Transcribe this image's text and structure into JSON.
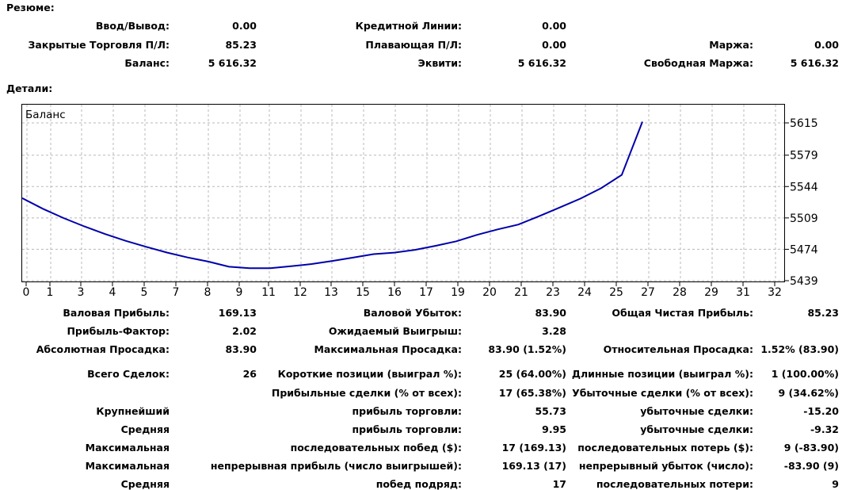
{
  "summary": {
    "title": "Резюме:",
    "rows": [
      [
        {
          "label": "Ввод/Вывод:",
          "value": "0.00"
        },
        {
          "label": "Кредитной Линии:",
          "value": "0.00"
        },
        {
          "label": "",
          "value": ""
        }
      ],
      [
        {
          "label": "Закрытые Торговля П/Л:",
          "value": "85.23"
        },
        {
          "label": "Плавающая П/Л:",
          "value": "0.00"
        },
        {
          "label": "Маржа:",
          "value": "0.00"
        }
      ],
      [
        {
          "label": "Баланс:",
          "value": "5 616.32"
        },
        {
          "label": "Эквити:",
          "value": "5 616.32"
        },
        {
          "label": "Свободная Маржа:",
          "value": "5 616.32"
        }
      ]
    ]
  },
  "details": {
    "title": "Детали:"
  },
  "chart_data": {
    "type": "line",
    "title": "Баланс",
    "x_ticks": [
      "0",
      "1",
      "3",
      "4",
      "5",
      "7",
      "8",
      "9",
      "11",
      "12",
      "13",
      "15",
      "16",
      "17",
      "19",
      "20",
      "21",
      "23",
      "24",
      "25",
      "27",
      "28",
      "29",
      "31",
      "32"
    ],
    "y_ticks": [
      "5615",
      "5579",
      "5544",
      "5509",
      "5474",
      "5439"
    ],
    "ylim": [
      5439,
      5615
    ],
    "series": [
      {
        "values": [
          5531.09,
          5519.23,
          5508.9,
          5499.6,
          5491.1,
          5483.5,
          5476.8,
          5470.4,
          5464.9,
          5460.3,
          5454.6,
          5453.0,
          5453.0,
          5455.1,
          5457.6,
          5461.0,
          5464.7,
          5468.6,
          5470.3,
          5473.4,
          5477.9,
          5483.0,
          5490.1,
          5496.2,
          5501.6,
          5510.9,
          5520.6,
          5530.5,
          5542.1,
          5557.0,
          5616.32
        ],
        "color": "#0000ab"
      }
    ],
    "grid": true
  },
  "stats": {
    "rows": [
      [
        {
          "label": "Валовая Прибыль:",
          "value": "169.13"
        },
        {
          "label": "Валовой Убыток:",
          "value": "83.90"
        },
        {
          "label": "Общая Чистая Прибыль:",
          "value": "85.23"
        }
      ],
      [
        {
          "label": "Прибыль-Фактор:",
          "value": "2.02"
        },
        {
          "label": "Ожидаемый Выигрыш:",
          "value": "3.28"
        },
        {
          "label": "",
          "value": ""
        }
      ],
      [
        {
          "label": "Абсолютная Просадка:",
          "value": "83.90"
        },
        {
          "label": "Максимальная Просадка:",
          "value": "83.90 (1.52%)"
        },
        {
          "label": "Относительная Просадка:",
          "value": "1.52% (83.90)"
        }
      ],
      [
        {
          "label": "Всего Сделок:",
          "value": "26"
        },
        {
          "label": "Короткие позиции (выиграл %):",
          "value": "25 (64.00%)"
        },
        {
          "label": "Длинные позиции (выиграл %):",
          "value": "1 (100.00%)"
        }
      ],
      [
        {
          "label": "",
          "value": ""
        },
        {
          "label": "Прибыльные сделки (% от всех):",
          "value": "17 (65.38%)"
        },
        {
          "label": "Убыточные сделки (% от всех):",
          "value": "9 (34.62%)"
        }
      ],
      [
        {
          "label": "Крупнейший",
          "value": ""
        },
        {
          "label": "прибыль торговли:",
          "value": "55.73"
        },
        {
          "label": "убыточные сделки:",
          "value": "-15.20"
        }
      ],
      [
        {
          "label": "Средняя",
          "value": ""
        },
        {
          "label": "прибыль торговли:",
          "value": "9.95"
        },
        {
          "label": "убыточные сделки:",
          "value": "-9.32"
        }
      ],
      [
        {
          "label": "Максимальная",
          "value": ""
        },
        {
          "label": "последовательных побед ($):",
          "value": "17 (169.13)"
        },
        {
          "label": "последовательных потерь ($):",
          "value": "9 (-83.90)"
        }
      ],
      [
        {
          "label": "Максимальная",
          "value": ""
        },
        {
          "label": "непрерывная прибыль (число выигрышей):",
          "value": "169.13 (17)"
        },
        {
          "label": "непрерывный убыток (число):",
          "value": "-83.90 (9)"
        }
      ],
      [
        {
          "label": "Средняя",
          "value": ""
        },
        {
          "label": "побед подряд:",
          "value": "17"
        },
        {
          "label": "последовательных потери:",
          "value": "9"
        }
      ]
    ]
  }
}
